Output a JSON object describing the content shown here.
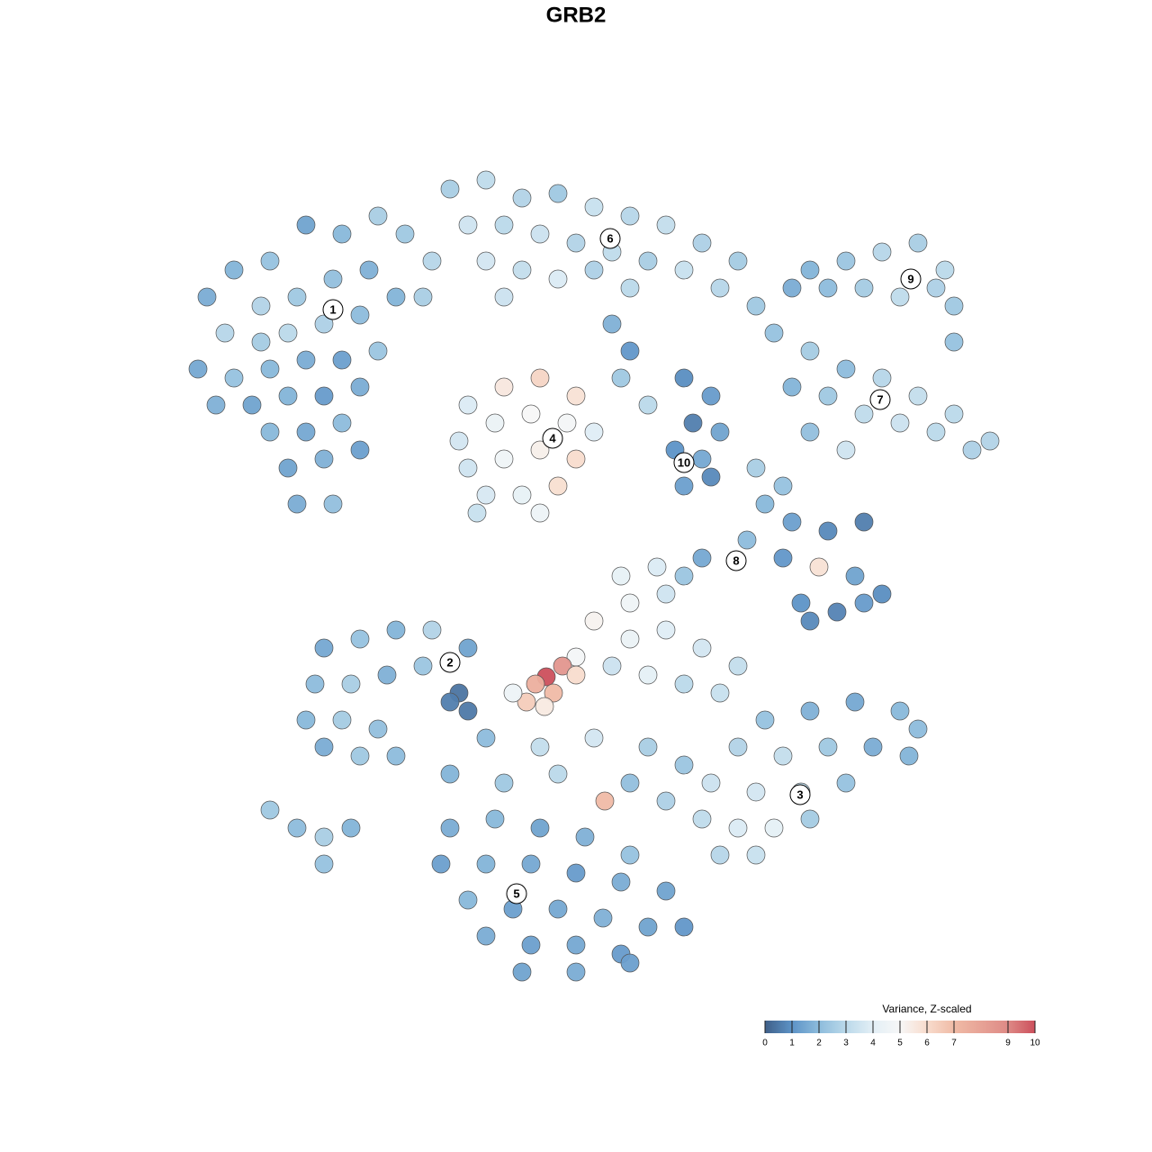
{
  "chart_data": {
    "type": "scatter",
    "title": "GRB2",
    "xlim": [
      0,
      128
    ],
    "ylim": [
      0,
      128
    ],
    "x": [
      23,
      26,
      30,
      34,
      38,
      42,
      29,
      33,
      37,
      41,
      25,
      29,
      32,
      36,
      40,
      44,
      22,
      26,
      30,
      34,
      38,
      42,
      24,
      28,
      32,
      36,
      40,
      30,
      34,
      38,
      32,
      36,
      40,
      33,
      37,
      45,
      48,
      47,
      50,
      54,
      58,
      62,
      66,
      70,
      74,
      78,
      82,
      52,
      56,
      60,
      64,
      68,
      72,
      76,
      80,
      84,
      54,
      58,
      62,
      66,
      70,
      56,
      90,
      94,
      98,
      102,
      105,
      106,
      106,
      88,
      92,
      96,
      100,
      104,
      86,
      90,
      94,
      98,
      102,
      106,
      110,
      88,
      92,
      96,
      100,
      104,
      108,
      90,
      94,
      52,
      56,
      60,
      64,
      51,
      55,
      59,
      63,
      66,
      52,
      56,
      60,
      64,
      54,
      58,
      62,
      53,
      60,
      76,
      79,
      77,
      80,
      75,
      78,
      76,
      79,
      70,
      69,
      72,
      68,
      84,
      87,
      85,
      88,
      92,
      96,
      83,
      87,
      91,
      95,
      98,
      89,
      93,
      96,
      90,
      78,
      76,
      69,
      73,
      70,
      74,
      66,
      70,
      74,
      78,
      82,
      64,
      68,
      72,
      76,
      80,
      60.7,
      62.5,
      59.5,
      61.5,
      64,
      58.5,
      60.5,
      57,
      67.2,
      36,
      40,
      44,
      48,
      52,
      35,
      39,
      43,
      47,
      51,
      34,
      38,
      42,
      36,
      40,
      44,
      50,
      52,
      30,
      33,
      36,
      39,
      36,
      85,
      90,
      95,
      100,
      102,
      82,
      87,
      92,
      97,
      101,
      79,
      84,
      89,
      94,
      78,
      82,
      86,
      90,
      80,
      84,
      54,
      60,
      66,
      72,
      76,
      50,
      56,
      62,
      70,
      74,
      50,
      55,
      60,
      65,
      70,
      49,
      54,
      59,
      64,
      69,
      74,
      52,
      57,
      62,
      67,
      72,
      76,
      54,
      59,
      64,
      69,
      58,
      64,
      70
    ],
    "y": [
      95,
      98,
      99,
      103,
      102,
      104,
      94,
      95,
      97,
      98,
      91,
      90,
      91,
      92,
      93,
      95,
      87,
      86,
      87,
      88,
      88,
      89,
      83,
      83,
      84,
      84,
      85,
      80,
      80,
      81,
      76,
      77,
      78,
      72,
      72,
      102,
      99,
      95,
      107,
      108,
      106,
      106.5,
      105,
      104,
      103,
      101,
      99,
      103,
      103,
      102,
      101,
      100,
      99,
      98,
      96,
      94,
      99,
      98,
      97,
      98,
      96,
      95,
      98,
      99,
      100,
      101,
      98,
      94,
      90,
      96,
      96,
      96,
      95,
      96,
      91,
      89,
      87,
      86,
      84,
      82,
      79,
      85,
      84,
      82,
      81,
      80,
      78,
      80,
      78,
      83,
      85,
      86,
      84,
      79,
      81,
      82,
      81,
      80,
      76,
      77,
      78,
      77,
      73,
      73,
      74,
      71,
      71,
      86,
      84,
      81,
      80,
      78,
      77,
      74,
      75,
      89,
      86,
      83,
      92,
      76,
      74,
      72,
      70,
      69,
      70,
      68,
      66,
      65,
      64,
      62,
      61,
      60,
      61,
      59,
      66,
      64,
      64,
      65,
      61,
      62,
      59,
      57,
      58,
      56,
      54,
      55,
      54,
      53,
      52,
      51,
      52.8,
      54,
      52,
      51,
      53,
      50,
      49.5,
      51,
      39,
      56,
      57,
      58,
      58,
      56,
      52,
      52,
      53,
      54,
      51,
      48,
      48,
      47,
      45,
      44,
      44,
      50,
      49,
      38,
      36,
      35,
      36,
      32,
      48,
      49,
      50,
      49,
      47,
      45,
      44,
      45,
      45,
      44,
      41,
      40,
      40,
      41,
      37,
      36,
      36,
      37,
      33,
      33,
      46,
      45,
      46,
      45,
      43,
      42,
      41,
      42,
      41,
      39,
      36,
      37,
      36,
      35,
      33,
      32,
      32,
      32,
      31,
      30,
      29,
      28,
      27,
      27,
      26,
      25,
      25,
      24,
      23,
      23,
      22,
      20,
      20,
      21
    ],
    "values": [
      1.6,
      1.8,
      2.2,
      1.4,
      1.9,
      2.6,
      2.8,
      2.4,
      2.1,
      1.7,
      2.9,
      2.5,
      3.0,
      2.7,
      2.0,
      1.8,
      1.5,
      2.2,
      1.9,
      1.6,
      1.3,
      2.3,
      1.7,
      1.4,
      1.8,
      1.2,
      1.6,
      1.9,
      1.5,
      2.0,
      1.4,
      1.7,
      1.3,
      1.6,
      2.1,
      2.4,
      2.9,
      2.6,
      2.6,
      3.1,
      2.8,
      2.4,
      3.3,
      2.9,
      3.2,
      2.7,
      2.5,
      3.5,
      3.0,
      3.4,
      2.8,
      3.1,
      2.6,
      3.3,
      2.9,
      2.4,
      3.6,
      3.2,
      3.8,
      2.7,
      3.0,
      3.4,
      1.8,
      2.3,
      2.9,
      2.6,
      3.0,
      2.4,
      2.2,
      1.6,
      2.0,
      2.5,
      3.1,
      2.7,
      2.2,
      2.5,
      2.0,
      2.9,
      3.2,
      3.0,
      2.8,
      1.8,
      2.4,
      3.1,
      3.4,
      3.0,
      2.7,
      2.1,
      3.5,
      3.8,
      5.6,
      6.2,
      5.8,
      3.6,
      4.4,
      5.0,
      4.8,
      3.9,
      3.5,
      4.6,
      5.3,
      6.0,
      3.7,
      4.2,
      5.9,
      3.3,
      4.5,
      0.9,
      1.2,
      0.6,
      1.4,
      1.0,
      1.5,
      1.3,
      0.8,
      1.1,
      2.4,
      3.0,
      1.7,
      2.6,
      2.2,
      1.9,
      1.3,
      0.8,
      0.6,
      2.0,
      1.1,
      5.8,
      1.4,
      0.9,
      1.0,
      0.7,
      1.2,
      0.8,
      1.5,
      2.3,
      4.2,
      3.8,
      4.6,
      3.5,
      5.2,
      4.4,
      3.9,
      3.6,
      3.2,
      4.8,
      3.4,
      4.1,
      3.0,
      3.3,
      10,
      8.5,
      7.5,
      7,
      6,
      6.5,
      5.5,
      4.5,
      7,
      1.5,
      2.2,
      1.8,
      2.8,
      1.4,
      2.0,
      2.6,
      1.7,
      2.3,
      0.4,
      1.9,
      2.5,
      2.1,
      1.6,
      2.4,
      2.0,
      0.6,
      0.5,
      2.4,
      2.0,
      2.6,
      1.8,
      2.2,
      2.2,
      1.7,
      1.5,
      1.9,
      2.0,
      2.8,
      3.2,
      2.4,
      1.6,
      1.8,
      3.4,
      3.6,
      3.0,
      2.2,
      3.1,
      3.8,
      4.1,
      2.5,
      2.9,
      3.3,
      2.0,
      3.2,
      3.6,
      2.6,
      2.3,
      1.8,
      2.4,
      3.0,
      2.1,
      2.7,
      1.6,
      1.9,
      1.4,
      1.7,
      2.2,
      1.3,
      1.8,
      1.5,
      1.2,
      1.6,
      1.4,
      1.9,
      1.3,
      1.5,
      1.7,
      1.4,
      1.1,
      1.6,
      1.3,
      1.5,
      1.2,
      1.4,
      1.6,
      1.3
    ],
    "cluster_labels": {
      "labels": [
        "1",
        "2",
        "3",
        "4",
        "5",
        "6",
        "7",
        "8",
        "9",
        "10"
      ],
      "x": [
        37,
        50,
        88.9,
        61.4,
        57.4,
        67.8,
        97.8,
        81.8,
        101.2,
        76
      ],
      "y": [
        93.6,
        54.4,
        39.7,
        79.3,
        28.7,
        101.5,
        83.6,
        65.7,
        97,
        76.6
      ]
    },
    "colorscale": [
      [
        0,
        "#3f5f88"
      ],
      [
        1,
        "#5d93c7"
      ],
      [
        2,
        "#8dbcdc"
      ],
      [
        3,
        "#bbd9ea"
      ],
      [
        4,
        "#e3eff6"
      ],
      [
        5,
        "#f7f7f7"
      ],
      [
        6,
        "#f8dccd"
      ],
      [
        7,
        "#f0bba6"
      ],
      [
        9,
        "#de8a86"
      ],
      [
        10,
        "#cc4f5c"
      ]
    ],
    "colorbar": {
      "title": "Variance, Z-scaled",
      "range": [
        0,
        10
      ],
      "ticks": [
        0,
        1,
        2,
        3,
        4,
        5,
        6,
        7,
        9,
        10
      ]
    }
  }
}
